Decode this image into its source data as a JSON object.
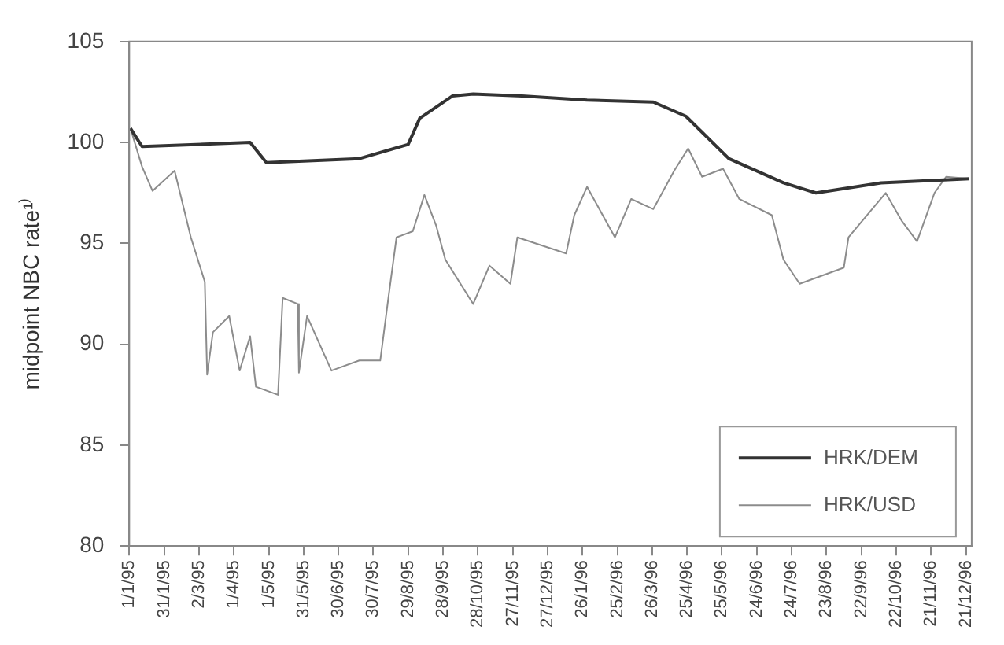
{
  "chart_data": {
    "type": "line",
    "ylabel": "midpoint NBC rate¹⁾",
    "xlim": [
      "1995-01-01",
      "1996-12-26"
    ],
    "ylim": [
      80,
      105
    ],
    "yticks": [
      80,
      85,
      90,
      95,
      100,
      105
    ],
    "xticks": [
      {
        "value": "1995-01-01",
        "label": "1/1/95"
      },
      {
        "value": "1995-01-31",
        "label": "31/1/95"
      },
      {
        "value": "1995-03-02",
        "label": "2/3/95"
      },
      {
        "value": "1995-04-01",
        "label": "1/4/95"
      },
      {
        "value": "1995-05-01",
        "label": "1/5/95"
      },
      {
        "value": "1995-05-31",
        "label": "31/5/95"
      },
      {
        "value": "1995-06-30",
        "label": "30/6/95"
      },
      {
        "value": "1995-07-30",
        "label": "30/7/95"
      },
      {
        "value": "1995-08-29",
        "label": "29/8/95"
      },
      {
        "value": "1995-09-28",
        "label": "28/9/95"
      },
      {
        "value": "1995-10-28",
        "label": "28/10/95"
      },
      {
        "value": "1995-11-27",
        "label": "27/11/95"
      },
      {
        "value": "1995-12-27",
        "label": "27/12/95"
      },
      {
        "value": "1996-01-26",
        "label": "26/1/96"
      },
      {
        "value": "1996-02-25",
        "label": "25/2/96"
      },
      {
        "value": "1996-03-26",
        "label": "26/3/96"
      },
      {
        "value": "1996-04-25",
        "label": "25/4/96"
      },
      {
        "value": "1996-05-25",
        "label": "25/5/96"
      },
      {
        "value": "1996-06-24",
        "label": "24/6/96"
      },
      {
        "value": "1996-07-24",
        "label": "24/7/96"
      },
      {
        "value": "1996-08-23",
        "label": "23/8/96"
      },
      {
        "value": "1996-09-22",
        "label": "22/9/96"
      },
      {
        "value": "1996-10-22",
        "label": "22/10/96"
      },
      {
        "value": "1996-11-21",
        "label": "21/11/96"
      },
      {
        "value": "1996-12-21",
        "label": "21/12/96"
      }
    ],
    "grid": false,
    "legend": "bottom right",
    "marker": "none",
    "line_style": "solid",
    "series": [
      {
        "name": "HRK/DEM",
        "color": "#333333",
        "x": [
          "1995-01-02",
          "1995-01-12",
          "1995-04-15",
          "1995-04-29",
          "1995-07-18",
          "1995-08-29",
          "1995-09-08",
          "1995-10-06",
          "1995-10-24",
          "1995-12-05",
          "1996-01-30",
          "1996-03-27",
          "1996-04-24",
          "1996-05-31",
          "1996-07-17",
          "1996-08-14",
          "1996-10-09",
          "1996-12-24"
        ],
        "values": [
          100.7,
          99.8,
          100.0,
          99.0,
          99.2,
          99.9,
          101.2,
          102.3,
          102.4,
          102.3,
          102.1,
          102.0,
          101.3,
          99.2,
          98.0,
          97.5,
          98.0,
          98.2
        ]
      },
      {
        "name": "HRK/USD",
        "color": "#8c8c8c",
        "x": [
          "1995-01-02",
          "1995-01-12",
          "1995-01-21",
          "1995-02-09",
          "1995-02-23",
          "1995-03-07",
          "1995-03-09",
          "1995-03-14",
          "1995-03-28",
          "1995-04-06",
          "1995-04-15",
          "1995-04-20",
          "1995-05-09",
          "1995-05-13",
          "1995-05-26",
          "1995-05-27",
          "1995-06-03",
          "1995-06-24",
          "1995-07-18",
          "1995-08-05",
          "1995-08-12",
          "1995-08-19",
          "1995-09-02",
          "1995-09-12",
          "1995-09-22",
          "1995-09-30",
          "1995-10-24",
          "1995-11-07",
          "1995-11-25",
          "1995-12-01",
          "1996-01-12",
          "1996-01-19",
          "1996-01-30",
          "1996-02-23",
          "1996-03-08",
          "1996-03-27",
          "1996-04-14",
          "1996-04-26",
          "1996-05-08",
          "1996-05-26",
          "1996-06-09",
          "1996-07-07",
          "1996-07-17",
          "1996-07-31",
          "1996-09-07",
          "1996-09-11",
          "1996-10-13",
          "1996-10-27",
          "1996-11-09",
          "1996-11-24",
          "1996-12-04",
          "1996-12-24"
        ],
        "values": [
          100.7,
          98.8,
          97.6,
          98.6,
          95.3,
          93.1,
          88.5,
          90.6,
          91.4,
          88.7,
          90.4,
          87.9,
          87.5,
          92.3,
          92.0,
          88.6,
          91.4,
          88.7,
          89.2,
          89.2,
          92.3,
          95.3,
          95.6,
          97.4,
          95.9,
          94.2,
          92.0,
          93.9,
          93.0,
          95.3,
          94.5,
          96.4,
          97.8,
          95.3,
          97.2,
          96.7,
          98.6,
          99.7,
          98.3,
          98.7,
          97.2,
          96.4,
          94.2,
          93.0,
          93.8,
          95.3,
          97.5,
          96.1,
          95.1,
          97.5,
          98.3,
          98.2
        ]
      }
    ]
  }
}
